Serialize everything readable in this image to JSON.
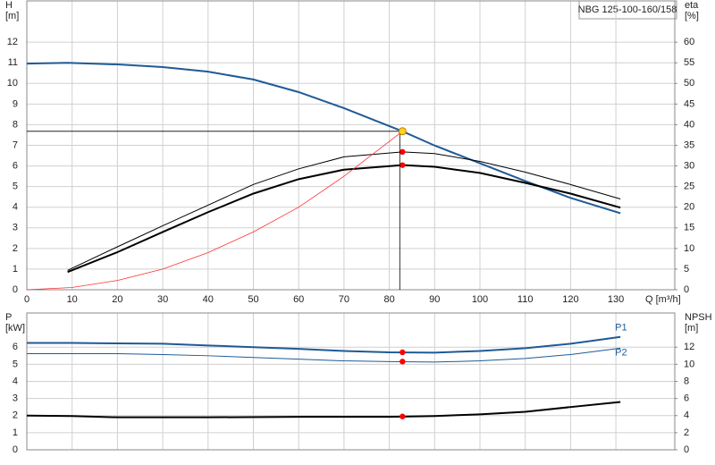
{
  "chart_data": [
    {
      "type": "line",
      "title": "NBG 125-100-160/158",
      "y_label": [
        "H",
        "[m]"
      ],
      "y2_label": [
        "eta",
        "[%]"
      ],
      "x_label": "Q [m³/h]",
      "xlim": [
        0,
        143
      ],
      "xticks": [
        0,
        10,
        20,
        30,
        40,
        50,
        60,
        70,
        80,
        90,
        100,
        110,
        120,
        130
      ],
      "ylim": [
        0,
        14
      ],
      "yticks": [
        0,
        1,
        2,
        3,
        4,
        5,
        6,
        7,
        8,
        9,
        10,
        11,
        12
      ],
      "y2lim": [
        0,
        70
      ],
      "y2ticks": [
        0,
        5,
        10,
        15,
        20,
        25,
        30,
        35,
        40,
        45,
        50,
        55,
        60
      ],
      "grid": true,
      "series": [
        {
          "style": "line",
          "axis": "y",
          "color": "#1f5a96",
          "line_width": 2,
          "x": [
            0,
            9,
            20,
            30,
            40,
            50,
            60,
            70,
            82.9,
            90,
            100,
            110,
            120,
            131
          ],
          "values": [
            10.96,
            11.0,
            10.92,
            10.79,
            10.57,
            10.19,
            9.58,
            8.8,
            7.68,
            6.99,
            6.13,
            5.27,
            4.45,
            3.71
          ]
        },
        {
          "style": "line",
          "axis": "y2",
          "color": "#000000",
          "line_width": 1,
          "x": [
            9,
            20,
            30,
            40,
            50,
            60,
            70,
            82.9,
            90,
            100,
            110,
            120,
            131
          ],
          "values": [
            4.7,
            10.4,
            15.5,
            20.5,
            25.5,
            29.3,
            32.2,
            33.4,
            33.0,
            31.1,
            28.5,
            25.5,
            22.0
          ]
        },
        {
          "style": "line",
          "axis": "y2",
          "color": "#000000",
          "line_width": 2,
          "x": [
            9,
            20,
            30,
            40,
            50,
            60,
            70,
            82.9,
            90,
            100,
            110,
            120,
            131
          ],
          "values": [
            4.3,
            9.1,
            14.0,
            18.8,
            23.3,
            26.8,
            29.1,
            30.2,
            29.8,
            28.3,
            25.9,
            23.3,
            19.9
          ]
        },
        {
          "style": "line",
          "axis": "y",
          "color": "#ff3030",
          "line_width": 0.8,
          "x": [
            0,
            10,
            20,
            30,
            40,
            50,
            60,
            70,
            82.9
          ],
          "values": [
            0,
            0.11,
            0.45,
            1.0,
            1.8,
            2.8,
            4.0,
            5.5,
            7.68
          ]
        },
        {
          "style": "points",
          "axis": "y2",
          "color": "#ff0000",
          "x": [
            82.9,
            82.9
          ],
          "values": [
            33.4,
            30.2
          ]
        },
        {
          "style": "points",
          "axis": "y",
          "color": "#ffd21f",
          "crosshair": true,
          "x": [
            82.9
          ],
          "values": [
            7.68
          ]
        }
      ]
    },
    {
      "type": "line",
      "y_label": [
        "P",
        "[kW]"
      ],
      "y2_label": [
        "NPSH",
        "[m]"
      ],
      "xlim": [
        0,
        143
      ],
      "ylim": [
        0,
        8
      ],
      "yticks": [
        0,
        1,
        2,
        3,
        4,
        5,
        6
      ],
      "y2lim": [
        0,
        16
      ],
      "y2ticks": [
        0,
        2,
        4,
        6,
        8,
        10,
        12
      ],
      "grid": true,
      "series": [
        {
          "name": "P1",
          "style": "line",
          "axis": "y",
          "color": "#1f5a96",
          "line_width": 2,
          "x": [
            0,
            10,
            20,
            30,
            40,
            50,
            60,
            70,
            80,
            90,
            100,
            110,
            120,
            131
          ],
          "values": [
            6.25,
            6.25,
            6.22,
            6.2,
            6.1,
            6.0,
            5.9,
            5.78,
            5.7,
            5.68,
            5.78,
            5.94,
            6.2,
            6.6
          ]
        },
        {
          "name": "P2",
          "style": "line",
          "axis": "y",
          "color": "#1f5a96",
          "line_width": 1,
          "x": [
            0,
            10,
            20,
            30,
            40,
            50,
            60,
            70,
            80,
            90,
            100,
            110,
            120,
            131
          ],
          "values": [
            5.62,
            5.62,
            5.62,
            5.57,
            5.5,
            5.4,
            5.3,
            5.2,
            5.16,
            5.13,
            5.2,
            5.34,
            5.57,
            5.94
          ]
        },
        {
          "style": "line",
          "axis": "y2",
          "color": "#000000",
          "line_width": 2,
          "x": [
            0,
            10,
            20,
            40,
            60,
            80,
            90,
            100,
            110,
            120,
            131
          ],
          "values": [
            4.0,
            3.95,
            3.8,
            3.8,
            3.85,
            3.85,
            3.95,
            4.15,
            4.45,
            5.0,
            5.6
          ]
        },
        {
          "style": "points",
          "axis": "y",
          "color": "#ff0000",
          "x": [
            82.9,
            82.9
          ],
          "values": [
            5.7,
            5.16
          ]
        },
        {
          "style": "points",
          "axis": "y2",
          "color": "#ff0000",
          "x": [
            82.9
          ],
          "values": [
            3.9
          ]
        }
      ]
    }
  ]
}
